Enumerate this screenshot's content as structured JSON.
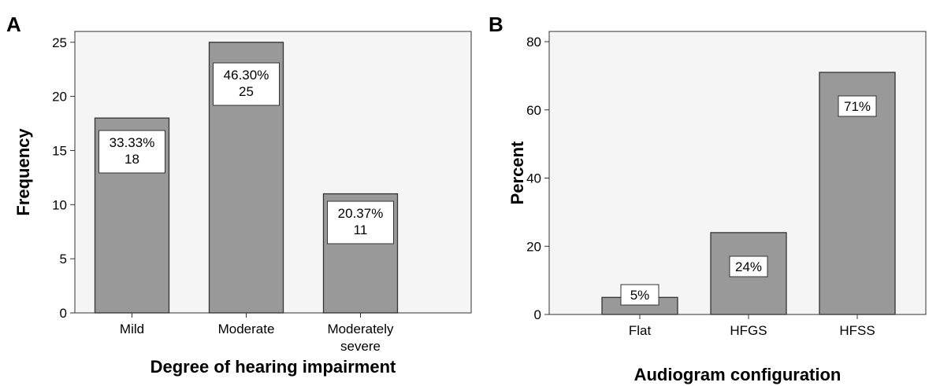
{
  "chart_data": [
    {
      "panel": "A",
      "type": "bar",
      "categories": [
        [
          "Mild"
        ],
        [
          "Moderate"
        ],
        [
          "Moderately",
          "severe"
        ]
      ],
      "values": [
        18,
        25,
        11
      ],
      "bar_labels": [
        [
          "33.33%",
          "18"
        ],
        [
          "46.30%",
          "25"
        ],
        [
          "20.37%",
          "11"
        ]
      ],
      "xlabel": "Degree of hearing impairment",
      "ylabel": "Frequency",
      "ylim": [
        0,
        26
      ],
      "yticks": [
        0,
        5,
        10,
        15,
        20,
        25
      ],
      "grid": false,
      "bar_color": "#999999",
      "plot_bg": "#f5f5f5"
    },
    {
      "panel": "B",
      "type": "bar",
      "categories": [
        [
          "Flat"
        ],
        [
          "HFGS"
        ],
        [
          "HFSS"
        ]
      ],
      "values": [
        5,
        24,
        71
      ],
      "bar_labels": [
        [
          "5%"
        ],
        [
          "24%"
        ],
        [
          "71%"
        ]
      ],
      "xlabel": "Audiogram configuration",
      "ylabel": "Percent",
      "ylim": [
        0,
        83
      ],
      "yticks": [
        0,
        20,
        40,
        60,
        80
      ],
      "grid": false,
      "bar_color": "#999999",
      "plot_bg": "#f5f5f5"
    }
  ]
}
